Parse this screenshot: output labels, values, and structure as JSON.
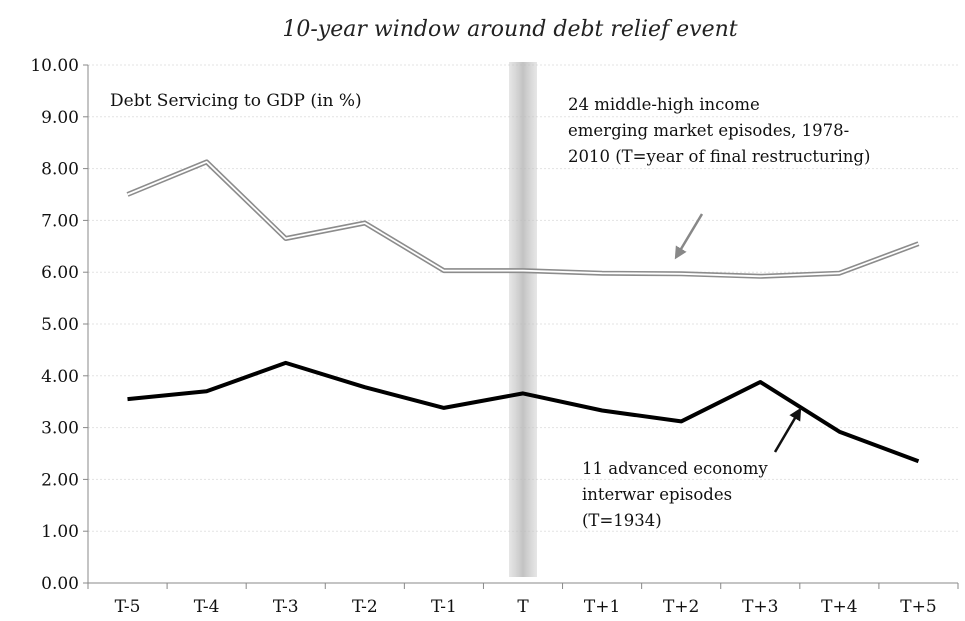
{
  "chart_data": {
    "type": "line",
    "title": "10-year window around debt relief event",
    "ylabel": "Debt Servicing to GDP (in %)",
    "xlabel": "",
    "categories": [
      "T-5",
      "T-4",
      "T-3",
      "T-2",
      "T-1",
      "T",
      "T+1",
      "T+2",
      "T+3",
      "T+4",
      "T+5"
    ],
    "ylim": [
      0,
      10
    ],
    "yticks": [
      "0.00",
      "1.00",
      "2.00",
      "3.00",
      "4.00",
      "5.00",
      "6.00",
      "7.00",
      "8.00",
      "9.00",
      "10.00"
    ],
    "grid": true,
    "event_marker_category": "T",
    "series": [
      {
        "values": [
          7.5,
          8.13,
          6.65,
          6.95,
          6.03,
          6.03,
          5.98,
          5.97,
          5.92,
          5.98,
          6.55
        ],
        "color": "#8c8c8c",
        "style": "double-line"
      },
      {
        "values": [
          3.55,
          3.7,
          4.25,
          3.78,
          3.38,
          3.66,
          3.33,
          3.12,
          3.88,
          2.92,
          2.35
        ],
        "color": "#000000",
        "style": "solid-thick"
      }
    ],
    "annotations": [
      {
        "lines": [
          "24 middle-high income",
          "emerging market episodes, 1978-",
          "2010 (T=year of final restructuring)"
        ]
      },
      {
        "lines": [
          "11 advanced economy",
          "interwar episodes",
          "(T=1934)"
        ]
      }
    ]
  }
}
